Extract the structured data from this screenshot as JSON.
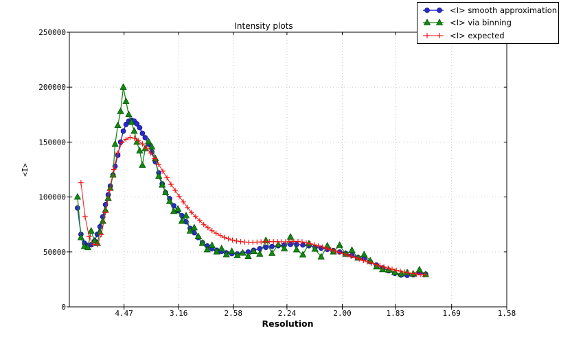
{
  "chart_data": {
    "type": "line",
    "title": "Intensity plots",
    "xlabel": "Resolution",
    "ylabel": "<I>",
    "grid": true,
    "legend_position": "top-right",
    "x_axis": {
      "tick_labels": [
        "4.47",
        "3.16",
        "2.58",
        "2.24",
        "2.00",
        "1.83",
        "1.69",
        "1.58"
      ],
      "tick_positions_inv_d2": [
        0.0501,
        0.1001,
        0.1502,
        0.1993,
        0.25,
        0.2986,
        0.3501,
        0.4006
      ],
      "range_inv_d2": [
        0,
        0.4006
      ],
      "scale_note": "linear in 1/d^2, labeled in resolution d"
    },
    "y_axis": {
      "ticks": [
        0,
        50000,
        100000,
        150000,
        200000,
        250000
      ],
      "tick_labels": [
        "0",
        "50000",
        "100000",
        "150000",
        "200000",
        "250000"
      ],
      "range": [
        0,
        250000
      ]
    },
    "series": [
      {
        "name": "<I> smooth approximation",
        "marker": "circle",
        "color": "#2a2acb",
        "edge": "#16168f",
        "line_width": 1.4,
        "x": [
          0.0075,
          0.0106,
          0.0138,
          0.0169,
          0.02,
          0.0231,
          0.0256,
          0.0281,
          0.0306,
          0.0331,
          0.0356,
          0.0375,
          0.04,
          0.0419,
          0.0444,
          0.0469,
          0.0494,
          0.0519,
          0.0544,
          0.0569,
          0.0594,
          0.0619,
          0.0644,
          0.0669,
          0.0694,
          0.0725,
          0.0756,
          0.0788,
          0.0819,
          0.085,
          0.0881,
          0.0919,
          0.0956,
          0.0994,
          0.1031,
          0.1069,
          0.1106,
          0.1144,
          0.1181,
          0.1219,
          0.1263,
          0.1306,
          0.135,
          0.1394,
          0.1438,
          0.1488,
          0.1538,
          0.1588,
          0.1638,
          0.1688,
          0.1744,
          0.18,
          0.1856,
          0.1913,
          0.1969,
          0.2025,
          0.2081,
          0.2138,
          0.2194,
          0.225,
          0.2306,
          0.2363,
          0.2419,
          0.2475,
          0.2531,
          0.2588,
          0.2644,
          0.27,
          0.2756,
          0.2813,
          0.2869,
          0.2925,
          0.2981,
          0.3038,
          0.3094,
          0.315,
          0.3206,
          0.3263
        ],
        "values": [
          90000,
          66000,
          58000,
          56000,
          56500,
          60000,
          66000,
          73000,
          82000,
          93000,
          102000,
          110000,
          120000,
          128000,
          138000,
          150000,
          160000,
          166000,
          169000,
          170000,
          169000,
          166500,
          163000,
          158000,
          154000,
          148000,
          141000,
          132000,
          122000,
          112000,
          104000,
          98500,
          92000,
          87500,
          83000,
          77500,
          71500,
          67500,
          63000,
          58500,
          55500,
          53000,
          51500,
          50400,
          49200,
          48400,
          48200,
          48800,
          50000,
          51500,
          53000,
          54200,
          55000,
          55600,
          56200,
          56800,
          56800,
          56300,
          55600,
          54300,
          53400,
          52300,
          51300,
          50000,
          48800,
          46800,
          45000,
          43800,
          41100,
          38000,
          35500,
          32800,
          30500,
          29000,
          28700,
          29200,
          31000,
          29800
        ]
      },
      {
        "name": "<I> via binning",
        "marker": "triangle",
        "color": "#128a12",
        "edge": "#0a560a",
        "line_width": 1.3,
        "x": [
          0.0075,
          0.0106,
          0.0138,
          0.0169,
          0.02,
          0.0231,
          0.0256,
          0.0281,
          0.0306,
          0.0331,
          0.0356,
          0.0375,
          0.04,
          0.0419,
          0.0444,
          0.0469,
          0.0494,
          0.0519,
          0.0544,
          0.0569,
          0.0594,
          0.0619,
          0.0644,
          0.0669,
          0.0694,
          0.0725,
          0.0756,
          0.0788,
          0.0819,
          0.085,
          0.0881,
          0.0919,
          0.0956,
          0.0994,
          0.1031,
          0.1069,
          0.1106,
          0.1144,
          0.1181,
          0.1219,
          0.1263,
          0.1306,
          0.135,
          0.1394,
          0.1438,
          0.1488,
          0.1538,
          0.1588,
          0.1638,
          0.1688,
          0.1744,
          0.18,
          0.1856,
          0.1913,
          0.1969,
          0.2025,
          0.2081,
          0.2138,
          0.2194,
          0.225,
          0.2306,
          0.2363,
          0.2419,
          0.2475,
          0.2531,
          0.2588,
          0.2644,
          0.27,
          0.2756,
          0.2813,
          0.2869,
          0.2925,
          0.2981,
          0.3038,
          0.3094,
          0.315,
          0.3206,
          0.3263
        ],
        "values": [
          100000,
          63000,
          55000,
          54000,
          69000,
          60000,
          58000,
          68000,
          78000,
          88000,
          99000,
          108000,
          120000,
          148000,
          165000,
          178000,
          200000,
          187000,
          175000,
          168000,
          160000,
          150000,
          142000,
          129000,
          144000,
          150500,
          145500,
          135000,
          119000,
          111000,
          104000,
          96000,
          87000,
          89000,
          78000,
          83000,
          69000,
          72000,
          64000,
          58000,
          52000,
          56000,
          50000,
          53000,
          47500,
          50500,
          46700,
          49000,
          46000,
          50400,
          48000,
          60500,
          48600,
          56700,
          53000,
          63600,
          52000,
          47400,
          57500,
          52500,
          45500,
          55500,
          50000,
          56100,
          48000,
          51500,
          44500,
          47500,
          42000,
          36500,
          34000,
          33500,
          31300,
          30000,
          31200,
          29900,
          33700,
          29400
        ]
      },
      {
        "name": "<I> expected",
        "marker": "plus",
        "color": "#f21414",
        "edge": "#f21414",
        "line_width": 1,
        "x": [
          0.0106,
          0.0144,
          0.0181,
          0.0219,
          0.0256,
          0.0294,
          0.0331,
          0.0369,
          0.0406,
          0.0444,
          0.0481,
          0.0519,
          0.0556,
          0.0594,
          0.0631,
          0.0669,
          0.0706,
          0.0744,
          0.0781,
          0.0819,
          0.0856,
          0.0894,
          0.0931,
          0.0969,
          0.1006,
          0.1044,
          0.1081,
          0.1119,
          0.1156,
          0.1194,
          0.1231,
          0.1269,
          0.1306,
          0.1344,
          0.1381,
          0.1419,
          0.1456,
          0.1494,
          0.1531,
          0.1569,
          0.1606,
          0.1644,
          0.1681,
          0.1719,
          0.1756,
          0.1794,
          0.1831,
          0.1869,
          0.1906,
          0.1944,
          0.1981,
          0.2019,
          0.2056,
          0.2094,
          0.2131,
          0.2169,
          0.2206,
          0.2244,
          0.2281,
          0.2319,
          0.2356,
          0.2394,
          0.2431,
          0.2469,
          0.2506,
          0.2544,
          0.2581,
          0.2619,
          0.2656,
          0.2694,
          0.2731,
          0.2769,
          0.2806,
          0.2844,
          0.2881,
          0.2919,
          0.2956,
          0.2994,
          0.3031,
          0.3069,
          0.3106,
          0.3144,
          0.3181,
          0.3219,
          0.3256
        ],
        "values": [
          113000,
          82000,
          64000,
          57000,
          56500,
          66000,
          86000,
          106000,
          125000,
          140000,
          149500,
          152500,
          154300,
          153500,
          151500,
          148300,
          144500,
          140000,
          135000,
          129500,
          123500,
          117500,
          111500,
          106000,
          100500,
          95500,
          90500,
          86000,
          82000,
          78500,
          75000,
          72000,
          69300,
          67000,
          65000,
          63300,
          61900,
          60800,
          60000,
          59400,
          59000,
          58800,
          58800,
          58900,
          59100,
          59300,
          59400,
          59400,
          59300,
          59200,
          59200,
          59400,
          59600,
          59500,
          59100,
          58400,
          57500,
          56500,
          55500,
          54400,
          53300,
          52100,
          50900,
          49700,
          48500,
          47300,
          46100,
          44900,
          43600,
          42300,
          41000,
          39800,
          38600,
          37400,
          36300,
          35200,
          34200,
          33300,
          32500,
          31700,
          31000,
          30400,
          29900,
          29500,
          29200
        ]
      }
    ]
  }
}
